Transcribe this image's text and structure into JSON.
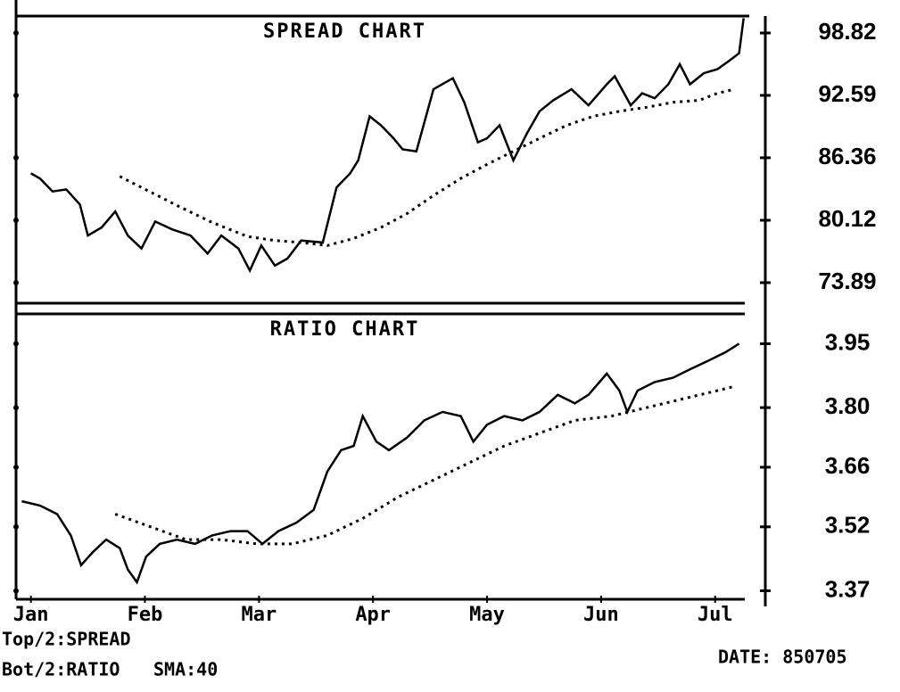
{
  "chart_data": [
    {
      "type": "line",
      "title": "SPREAD CHART",
      "xlim": [
        -0.13,
        6.26
      ],
      "ylim": [
        71.84,
        100.51
      ],
      "yticks": [
        98.82,
        92.59,
        86.36,
        80.12,
        73.89
      ],
      "series": [
        {
          "color": "#000000",
          "dashed": false,
          "x": [
            0,
            0.08,
            0.19,
            0.31,
            0.43,
            0.5,
            0.62,
            0.74,
            0.85,
            0.97,
            1.09,
            1.24,
            1.4,
            1.55,
            1.67,
            1.82,
            1.92,
            2.02,
            2.14,
            2.25,
            2.37,
            2.56,
            2.68,
            2.8,
            2.87,
            2.97,
            3.07,
            3.18,
            3.26,
            3.38,
            3.53,
            3.7,
            3.8,
            3.92,
            4.0,
            4.11,
            4.23,
            4.35,
            4.46,
            4.58,
            4.74,
            4.89,
            5.05,
            5.12,
            5.26,
            5.36,
            5.47,
            5.59,
            5.69,
            5.78,
            5.9,
            6.02,
            6.13,
            6.21,
            6.25
          ],
          "values": [
            84.8,
            84.3,
            83.0,
            83.2,
            81.7,
            78.6,
            79.4,
            81.0,
            78.6,
            77.3,
            80.0,
            79.2,
            78.6,
            76.8,
            78.6,
            77.3,
            75.1,
            77.6,
            75.6,
            76.3,
            78.1,
            77.9,
            83.4,
            84.8,
            86.1,
            90.5,
            89.6,
            88.3,
            87.2,
            87.0,
            93.2,
            94.3,
            91.9,
            87.9,
            88.3,
            89.6,
            86.1,
            88.8,
            91.0,
            92.1,
            93.2,
            91.6,
            93.7,
            94.5,
            91.6,
            92.8,
            92.3,
            93.7,
            95.7,
            93.7,
            94.8,
            95.2,
            96.1,
            96.8,
            100.3
          ]
        },
        {
          "color": "#000000",
          "dashed": true,
          "x": [
            0.78,
            0.97,
            1.28,
            1.59,
            1.9,
            2.14,
            2.37,
            2.6,
            2.83,
            3.07,
            3.3,
            3.53,
            3.77,
            4.0,
            4.23,
            4.46,
            4.7,
            4.93,
            5.16,
            5.4,
            5.63,
            5.86,
            6.02,
            6.17
          ],
          "values": [
            84.5,
            83.4,
            81.6,
            79.9,
            78.5,
            78.1,
            77.9,
            77.6,
            78.3,
            79.4,
            80.8,
            82.6,
            84.3,
            85.7,
            87.0,
            88.3,
            89.6,
            90.5,
            91.0,
            91.4,
            91.9,
            92.1,
            92.8,
            93.2
          ]
        }
      ]
    },
    {
      "type": "line",
      "title": "RATIO CHART",
      "xlim": [
        -0.13,
        6.26
      ],
      "ylim": [
        3.35,
        4.02
      ],
      "yticks": [
        3.95,
        {
          "value": 3.8,
          "label": "3.80"
        },
        3.66,
        3.52,
        3.37
      ],
      "xticks": [
        {
          "value": 0,
          "label": "Jan"
        },
        {
          "value": 1,
          "label": "Feb"
        },
        {
          "value": 2,
          "label": "Mar"
        },
        {
          "value": 3,
          "label": "Apr"
        },
        {
          "value": 4,
          "label": "May"
        },
        {
          "value": 5,
          "label": "Jun"
        },
        {
          "value": 6,
          "label": "Jul"
        }
      ],
      "series": [
        {
          "color": "#000000",
          "dashed": false,
          "x": [
            -0.08,
            0.08,
            0.23,
            0.35,
            0.44,
            0.54,
            0.66,
            0.78,
            0.85,
            0.93,
            1.01,
            1.13,
            1.28,
            1.44,
            1.59,
            1.75,
            1.9,
            2.03,
            2.17,
            2.33,
            2.48,
            2.6,
            2.72,
            2.83,
            2.91,
            3.03,
            3.14,
            3.3,
            3.45,
            3.61,
            3.77,
            3.88,
            4.0,
            4.15,
            4.31,
            4.46,
            4.62,
            4.77,
            4.89,
            5.05,
            5.16,
            5.23,
            5.32,
            5.47,
            5.63,
            5.78,
            5.94,
            6.09,
            6.21
          ],
          "values": [
            3.58,
            3.57,
            3.55,
            3.5,
            3.43,
            3.46,
            3.49,
            3.47,
            3.42,
            3.39,
            3.45,
            3.48,
            3.49,
            3.48,
            3.5,
            3.51,
            3.51,
            3.48,
            3.51,
            3.53,
            3.56,
            3.65,
            3.7,
            3.71,
            3.78,
            3.72,
            3.7,
            3.73,
            3.77,
            3.79,
            3.78,
            3.72,
            3.76,
            3.78,
            3.77,
            3.79,
            3.83,
            3.81,
            3.83,
            3.88,
            3.84,
            3.79,
            3.84,
            3.86,
            3.87,
            3.89,
            3.91,
            3.93,
            3.95
          ]
        },
        {
          "color": "#000000",
          "dashed": true,
          "x": [
            0.74,
            1.05,
            1.36,
            1.67,
            1.98,
            2.29,
            2.6,
            2.91,
            3.22,
            3.53,
            3.84,
            4.15,
            4.46,
            4.77,
            5.09,
            5.4,
            5.71,
            6.02,
            6.17
          ],
          "values": [
            3.55,
            3.52,
            3.49,
            3.49,
            3.48,
            3.48,
            3.5,
            3.54,
            3.59,
            3.63,
            3.67,
            3.71,
            3.74,
            3.77,
            3.78,
            3.8,
            3.82,
            3.84,
            3.85
          ]
        }
      ]
    }
  ],
  "footer": {
    "top": "Top/2:SPREAD",
    "bottom": "Bot/2:RATIO",
    "sma": "SMA:40",
    "date": "DATE: 850705"
  }
}
